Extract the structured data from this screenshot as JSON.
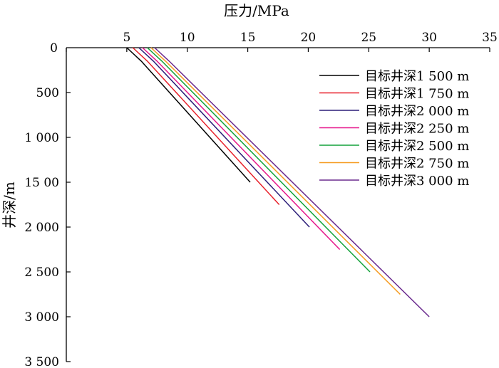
{
  "chart_data": {
    "type": "line",
    "xlabel": "压力/MPa",
    "ylabel": "井深/m",
    "x_axis_position": "top",
    "y_axis_inverted": true,
    "xlim": [
      0,
      35
    ],
    "ylim": [
      0,
      3500
    ],
    "x_ticks": [
      {
        "value": 0,
        "label": "0"
      },
      {
        "value": 5,
        "label": "5"
      },
      {
        "value": 10,
        "label": "10"
      },
      {
        "value": 15,
        "label": "15"
      },
      {
        "value": 20,
        "label": "20"
      },
      {
        "value": 25,
        "label": "25"
      },
      {
        "value": 30,
        "label": "30"
      },
      {
        "value": 35,
        "label": "35"
      }
    ],
    "y_ticks": [
      {
        "value": 500,
        "label": "500"
      },
      {
        "value": 1000,
        "label": "1 000"
      },
      {
        "value": 1500,
        "label": "15 00"
      },
      {
        "value": 2000,
        "label": "2 000"
      },
      {
        "value": 2500,
        "label": "2 500"
      },
      {
        "value": 3000,
        "label": "3 000"
      },
      {
        "value": 3500,
        "label": "3 500"
      }
    ],
    "grid": false,
    "legend_position": "top-right",
    "series": [
      {
        "name": "目标井深1 500 m",
        "color": "#000000",
        "points": [
          [
            5.0,
            0
          ],
          [
            6.2,
            150
          ],
          [
            15.2,
            1500
          ]
        ]
      },
      {
        "name": "目标井深1 750 m",
        "color": "#e8202a",
        "points": [
          [
            5.5,
            0
          ],
          [
            6.7,
            150
          ],
          [
            17.6,
            1750
          ]
        ]
      },
      {
        "name": "目标井深2 000 m",
        "color": "#2b1d78",
        "points": [
          [
            6.0,
            0
          ],
          [
            7.2,
            150
          ],
          [
            20.1,
            2000
          ]
        ]
      },
      {
        "name": "目标井深2 250 m",
        "color": "#e6168a",
        "points": [
          [
            6.3,
            0
          ],
          [
            7.5,
            150
          ],
          [
            22.6,
            2250
          ]
        ]
      },
      {
        "name": "目标井深2 500 m",
        "color": "#12a23a",
        "points": [
          [
            6.7,
            0
          ],
          [
            7.9,
            150
          ],
          [
            25.1,
            2500
          ]
        ]
      },
      {
        "name": "目标井深2 750 m",
        "color": "#f59a1e",
        "points": [
          [
            7.0,
            0
          ],
          [
            8.2,
            150
          ],
          [
            27.6,
            2750
          ]
        ]
      },
      {
        "name": "目标井深3 000 m",
        "color": "#6a2a8e",
        "points": [
          [
            7.3,
            0
          ],
          [
            8.5,
            150
          ],
          [
            30.0,
            3000
          ]
        ]
      }
    ]
  }
}
